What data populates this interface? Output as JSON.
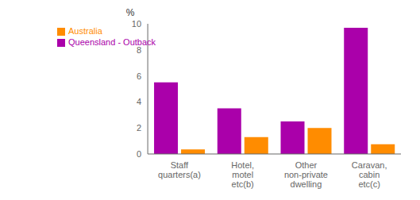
{
  "chart_data": {
    "type": "bar",
    "ylabel": "%",
    "categories": [
      "Staff\nquarters(a)",
      "Hotel,\nmotel\netc(b)",
      "Other\nnon-private\ndwelling",
      "Caravan,\ncabin\netc(c)"
    ],
    "series": [
      {
        "name": "Queensland - Outback",
        "color": "#aa00aa",
        "values": [
          5.5,
          3.5,
          2.5,
          9.7
        ]
      },
      {
        "name": "Australia",
        "color": "#ff8c00",
        "values": [
          0.35,
          1.3,
          2.0,
          0.75
        ]
      }
    ],
    "ylim": [
      0,
      10
    ],
    "yticks": [
      0,
      2,
      4,
      6,
      8,
      10
    ],
    "legend": "upper left",
    "grid": false
  }
}
